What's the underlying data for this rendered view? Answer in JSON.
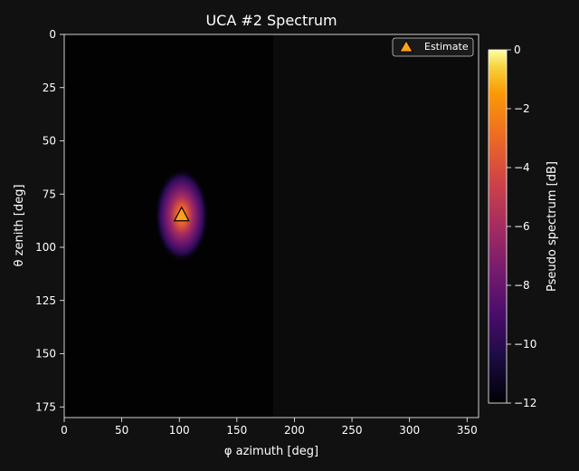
{
  "chart_data": {
    "type": "heatmap",
    "title": "UCA #2 Spectrum",
    "xlabel": "φ azimuth [deg]",
    "ylabel": "θ zenith [deg]",
    "xlim": [
      0,
      360
    ],
    "ylim": [
      180,
      0
    ],
    "xticks": [
      "0",
      "50",
      "100",
      "150",
      "200",
      "250",
      "300",
      "350"
    ],
    "yticks": [
      "0",
      "25",
      "50",
      "75",
      "100",
      "125",
      "150",
      "175"
    ],
    "colorbar": {
      "label": "Pseudo spectrum [dB]",
      "range": [
        -12,
        0
      ],
      "ticks": [
        "0",
        "−2",
        "−4",
        "−6",
        "−8",
        "−10",
        "−12"
      ],
      "colormap": "inferno"
    },
    "peak": {
      "azimuth": 102,
      "zenith": 85,
      "value": 0
    },
    "estimate": {
      "name": "Estimate",
      "azimuth": 102,
      "zenith": 85,
      "marker": "triangle",
      "color": "#ff9f1c"
    },
    "legend_position": "top-right",
    "grid": false
  }
}
